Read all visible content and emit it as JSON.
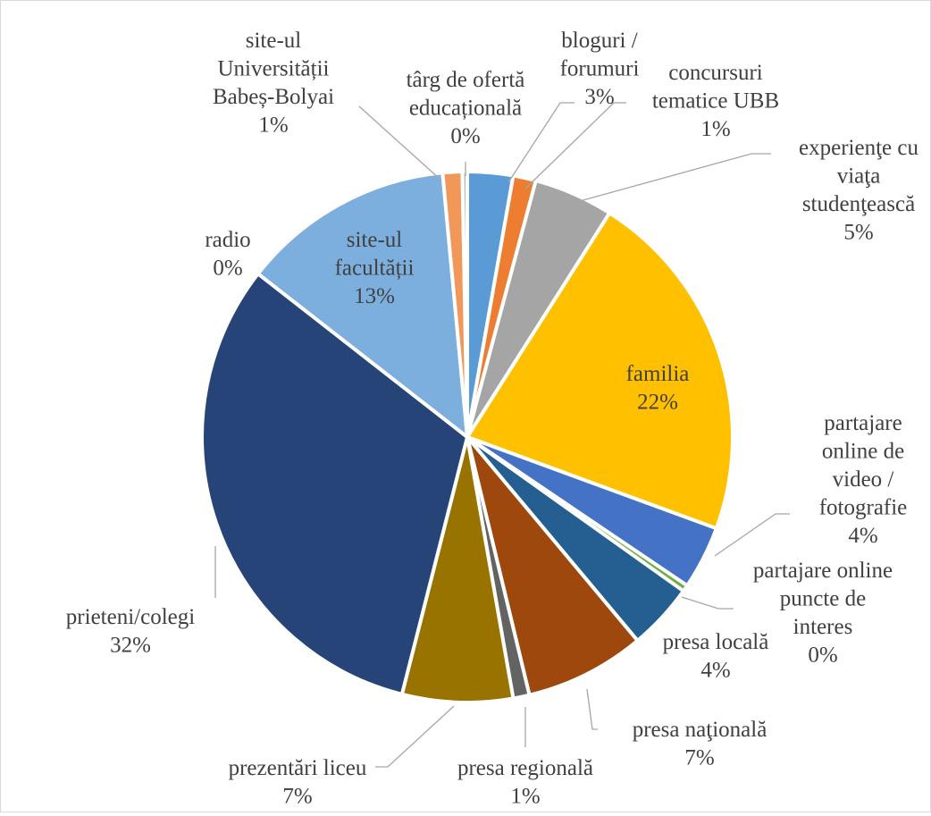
{
  "chart_data": {
    "type": "pie",
    "title": "",
    "slices": [
      {
        "label_lines": [
          "bloguri /",
          "forumuri"
        ],
        "pct_label": "3%",
        "value": 2.8,
        "color": "#5b9bd5"
      },
      {
        "label_lines": [
          "concursuri",
          "tematice UBB"
        ],
        "pct_label": "1%",
        "value": 1.4,
        "color": "#ed7d31"
      },
      {
        "label_lines": [
          "experienţe cu",
          "viaţa",
          "studenţească"
        ],
        "pct_label": "5%",
        "value": 4.9,
        "color": "#a5a5a5"
      },
      {
        "label_lines": [
          "familia"
        ],
        "pct_label": "22%",
        "value": 21.8,
        "color": "#ffc000"
      },
      {
        "label_lines": [
          "partajare",
          "online de",
          "video /",
          "fotografie"
        ],
        "pct_label": "4%",
        "value": 3.9,
        "color": "#4472c4"
      },
      {
        "label_lines": [
          "partajare online",
          "puncte de",
          "interes"
        ],
        "pct_label": "0%",
        "value": 0.4,
        "color": "#70ad47"
      },
      {
        "label_lines": [
          "presa locală"
        ],
        "pct_label": "4%",
        "value": 4.1,
        "color": "#255e91"
      },
      {
        "label_lines": [
          "presa naţională"
        ],
        "pct_label": "7%",
        "value": 7.4,
        "color": "#9e480e"
      },
      {
        "label_lines": [
          "presa regională"
        ],
        "pct_label": "1%",
        "value": 1.0,
        "color": "#636363"
      },
      {
        "label_lines": [
          "prezentări liceu"
        ],
        "pct_label": "7%",
        "value": 6.8,
        "color": "#997300"
      },
      {
        "label_lines": [
          "prieteni/colegi"
        ],
        "pct_label": "32%",
        "value": 31.9,
        "color": "#264478"
      },
      {
        "label_lines": [
          "radio"
        ],
        "pct_label": "0%",
        "value": 0.0,
        "color": "#43682b"
      },
      {
        "label_lines": [
          "site-ul",
          "facultății"
        ],
        "pct_label": "13%",
        "value": 13.1,
        "color": "#7cafdd"
      },
      {
        "label_lines": [
          "site-ul",
          "Universității",
          "Babeș-Bolyai"
        ],
        "pct_label": "1%",
        "value": 1.2,
        "color": "#f1975a"
      },
      {
        "label_lines": [
          "târg de ofertă",
          "educațională"
        ],
        "pct_label": "0%",
        "value": 0.3,
        "color": "#b7b7b7"
      }
    ]
  }
}
